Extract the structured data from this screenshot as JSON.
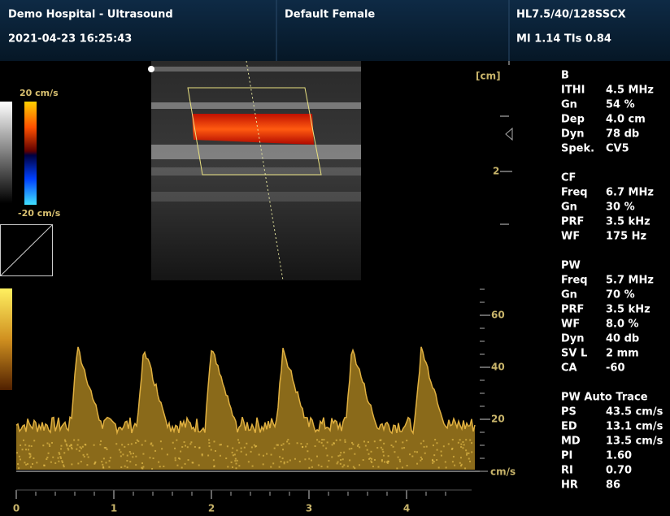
{
  "header": {
    "site": "Demo Hospital - Ultrasound",
    "datetime": "2021-04-23 16:25:43",
    "preset": "Default Female",
    "probe": "HL7.5/40/128SSCX",
    "indices": "MI 1.14 TIs 0.84"
  },
  "color_bar": {
    "top": "20 cm/s",
    "bottom": "-20 cm/s"
  },
  "depth_scale": {
    "unit": "[cm]",
    "label": "2"
  },
  "doppler_scale": {
    "ticks": [
      60,
      40,
      20
    ],
    "unit": "cm/s"
  },
  "time_axis": {
    "ticks": [
      0,
      1,
      2,
      3,
      4
    ]
  },
  "panel": {
    "sections": [
      {
        "title": "B",
        "rows": [
          [
            "ITHI",
            "4.5 MHz"
          ],
          [
            "Gn",
            "54 %"
          ],
          [
            "Dep",
            "4.0 cm"
          ],
          [
            "Dyn",
            "78 db"
          ],
          [
            "Spek.",
            "CV5"
          ]
        ]
      },
      {
        "title": "CF",
        "rows": [
          [
            "Freq",
            "6.7 MHz"
          ],
          [
            "Gn",
            "30 %"
          ],
          [
            "PRF",
            "3.5 kHz"
          ],
          [
            "WF",
            "175 Hz"
          ]
        ]
      },
      {
        "title": "PW",
        "rows": [
          [
            "Freq",
            "5.7 MHz"
          ],
          [
            "Gn",
            "70 %"
          ],
          [
            "PRF",
            "3.5 kHz"
          ],
          [
            "WF",
            "8.0 %"
          ],
          [
            "Dyn",
            "40 db"
          ],
          [
            "SV L",
            "2 mm"
          ],
          [
            "CA",
            "-60"
          ]
        ]
      },
      {
        "title": "PW Auto Trace",
        "rows": [
          [
            "PS",
            "43.5 cm/s"
          ],
          [
            "ED",
            "13.1 cm/s"
          ],
          [
            "MD",
            "13.5 cm/s"
          ],
          [
            "PI",
            "1.60"
          ],
          [
            "RI",
            "0.70"
          ],
          [
            "HR",
            "86"
          ]
        ]
      }
    ]
  }
}
